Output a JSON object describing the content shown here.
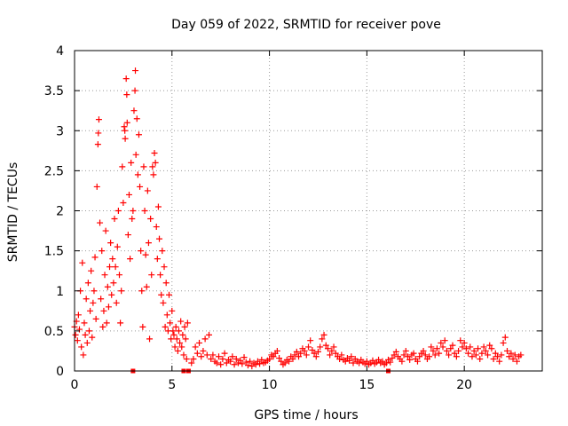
{
  "chart_data": {
    "type": "scatter",
    "title": "Day 059 of 2022, SRMTID for receiver pove",
    "xlabel": "GPS time / hours",
    "ylabel": "SRMTID / TECUs",
    "xlim": [
      0,
      24
    ],
    "ylim": [
      0,
      4
    ],
    "xticks": [
      0,
      5,
      10,
      15,
      20
    ],
    "yticks": [
      0,
      0.5,
      1,
      1.5,
      2,
      2.5,
      3,
      3.5,
      4
    ],
    "xtick_labels": [
      "0",
      "5",
      "10",
      "15",
      "20"
    ],
    "ytick_labels": [
      "0",
      "0.5",
      "1",
      "1.5",
      "2",
      "2.5",
      "3",
      "3.5",
      "4"
    ],
    "grid": true,
    "legend": "none",
    "marker": "+",
    "color": "#ff0000",
    "series": [
      {
        "marker": "+",
        "points": [
          [
            0.0,
            0.55
          ],
          [
            0.05,
            0.45
          ],
          [
            0.1,
            0.62
          ],
          [
            0.15,
            0.38
          ],
          [
            0.2,
            0.7
          ],
          [
            0.25,
            0.52
          ],
          [
            0.3,
            1.0
          ],
          [
            0.35,
            0.3
          ],
          [
            0.4,
            1.35
          ],
          [
            0.45,
            0.2
          ],
          [
            0.5,
            0.6
          ],
          [
            0.55,
            0.45
          ],
          [
            0.6,
            0.9
          ],
          [
            0.65,
            0.35
          ],
          [
            0.7,
            1.1
          ],
          [
            0.75,
            0.5
          ],
          [
            0.8,
            0.75
          ],
          [
            0.85,
            1.25
          ],
          [
            0.9,
            0.42
          ],
          [
            0.95,
            0.85
          ],
          [
            1.0,
            1.0
          ],
          [
            1.05,
            1.42
          ],
          [
            1.1,
            0.65
          ],
          [
            1.15,
            2.3
          ],
          [
            1.2,
            2.83
          ],
          [
            1.22,
            2.97
          ],
          [
            1.25,
            3.14
          ],
          [
            1.3,
            1.85
          ],
          [
            1.35,
            0.9
          ],
          [
            1.4,
            1.5
          ],
          [
            1.45,
            0.55
          ],
          [
            1.5,
            0.75
          ],
          [
            1.55,
            1.2
          ],
          [
            1.6,
            1.75
          ],
          [
            1.65,
            0.6
          ],
          [
            1.7,
            1.05
          ],
          [
            1.75,
            0.8
          ],
          [
            1.8,
            1.3
          ],
          [
            1.85,
            1.6
          ],
          [
            1.9,
            0.95
          ],
          [
            1.95,
            1.4
          ],
          [
            2.0,
            1.1
          ],
          [
            2.05,
            1.9
          ],
          [
            2.1,
            1.3
          ],
          [
            2.15,
            0.85
          ],
          [
            2.2,
            1.55
          ],
          [
            2.25,
            2.0
          ],
          [
            2.3,
            1.2
          ],
          [
            2.35,
            0.6
          ],
          [
            2.4,
            1.0
          ],
          [
            2.45,
            2.55
          ],
          [
            2.5,
            2.1
          ],
          [
            2.55,
            3.05
          ],
          [
            2.58,
            3.0
          ],
          [
            2.6,
            2.9
          ],
          [
            2.65,
            3.65
          ],
          [
            2.68,
            3.45
          ],
          [
            2.7,
            3.1
          ],
          [
            2.75,
            1.7
          ],
          [
            2.8,
            2.2
          ],
          [
            2.85,
            1.4
          ],
          [
            2.9,
            2.6
          ],
          [
            2.95,
            1.9
          ],
          [
            3.0,
            2.0
          ],
          [
            3.05,
            3.25
          ],
          [
            3.1,
            3.5
          ],
          [
            3.12,
            3.75
          ],
          [
            3.15,
            2.7
          ],
          [
            3.2,
            3.15
          ],
          [
            3.25,
            2.45
          ],
          [
            3.3,
            2.95
          ],
          [
            3.35,
            2.3
          ],
          [
            3.4,
            1.5
          ],
          [
            3.45,
            1.0
          ],
          [
            3.5,
            0.55
          ],
          [
            3.55,
            2.55
          ],
          [
            3.6,
            2.0
          ],
          [
            3.65,
            1.45
          ],
          [
            3.7,
            1.05
          ],
          [
            3.75,
            2.25
          ],
          [
            3.8,
            1.6
          ],
          [
            3.85,
            0.4
          ],
          [
            3.9,
            1.9
          ],
          [
            3.95,
            1.2
          ],
          [
            4.0,
            2.55
          ],
          [
            4.05,
            2.45
          ],
          [
            4.1,
            2.72
          ],
          [
            4.15,
            2.6
          ],
          [
            4.2,
            1.8
          ],
          [
            4.25,
            1.4
          ],
          [
            4.3,
            2.05
          ],
          [
            4.35,
            1.65
          ],
          [
            4.4,
            1.2
          ],
          [
            4.45,
            0.95
          ],
          [
            4.5,
            1.5
          ],
          [
            4.55,
            0.85
          ],
          [
            4.6,
            1.3
          ],
          [
            4.65,
            0.55
          ],
          [
            4.7,
            1.1
          ],
          [
            4.75,
            0.7
          ],
          [
            4.8,
            0.5
          ],
          [
            4.85,
            0.95
          ],
          [
            4.9,
            0.6
          ],
          [
            4.95,
            0.4
          ],
          [
            5.0,
            0.75
          ],
          [
            5.05,
            0.5
          ],
          [
            5.1,
            0.45
          ],
          [
            5.15,
            0.3
          ],
          [
            5.2,
            0.55
          ],
          [
            5.25,
            0.4
          ],
          [
            5.3,
            0.25
          ],
          [
            5.35,
            0.5
          ],
          [
            5.4,
            0.35
          ],
          [
            5.45,
            0.62
          ],
          [
            5.5,
            0.3
          ],
          [
            5.55,
            0.45
          ],
          [
            5.6,
            0.2
          ],
          [
            5.65,
            0.55
          ],
          [
            5.7,
            0.4
          ],
          [
            5.75,
            0.15
          ],
          [
            5.8,
            0.6
          ],
          [
            6.0,
            0.1
          ],
          [
            6.1,
            0.15
          ],
          [
            6.2,
            0.3
          ],
          [
            6.3,
            0.22
          ],
          [
            6.4,
            0.35
          ],
          [
            6.5,
            0.18
          ],
          [
            6.6,
            0.25
          ],
          [
            6.7,
            0.4
          ],
          [
            6.8,
            0.2
          ],
          [
            6.9,
            0.45
          ],
          [
            7.0,
            0.15
          ],
          [
            7.1,
            0.2
          ],
          [
            7.2,
            0.12
          ],
          [
            7.3,
            0.1
          ],
          [
            7.4,
            0.18
          ],
          [
            7.5,
            0.08
          ],
          [
            7.6,
            0.15
          ],
          [
            7.7,
            0.22
          ],
          [
            7.8,
            0.1
          ],
          [
            7.9,
            0.14
          ],
          [
            8.0,
            0.12
          ],
          [
            8.1,
            0.18
          ],
          [
            8.2,
            0.08
          ],
          [
            8.3,
            0.15
          ],
          [
            8.4,
            0.1
          ],
          [
            8.5,
            0.13
          ],
          [
            8.6,
            0.09
          ],
          [
            8.7,
            0.17
          ],
          [
            8.8,
            0.11
          ],
          [
            8.9,
            0.07
          ],
          [
            9.0,
            0.12
          ],
          [
            9.1,
            0.06
          ],
          [
            9.2,
            0.1
          ],
          [
            9.3,
            0.08
          ],
          [
            9.4,
            0.12
          ],
          [
            9.5,
            0.09
          ],
          [
            9.6,
            0.14
          ],
          [
            9.7,
            0.1
          ],
          [
            9.8,
            0.11
          ],
          [
            9.9,
            0.13
          ],
          [
            10.0,
            0.15
          ],
          [
            10.1,
            0.2
          ],
          [
            10.2,
            0.18
          ],
          [
            10.3,
            0.22
          ],
          [
            10.4,
            0.25
          ],
          [
            10.5,
            0.16
          ],
          [
            10.6,
            0.12
          ],
          [
            10.7,
            0.08
          ],
          [
            10.8,
            0.1
          ],
          [
            10.9,
            0.14
          ],
          [
            11.0,
            0.12
          ],
          [
            11.1,
            0.18
          ],
          [
            11.2,
            0.15
          ],
          [
            11.3,
            0.2
          ],
          [
            11.4,
            0.24
          ],
          [
            11.5,
            0.18
          ],
          [
            11.6,
            0.22
          ],
          [
            11.7,
            0.28
          ],
          [
            11.8,
            0.25
          ],
          [
            11.9,
            0.2
          ],
          [
            12.0,
            0.3
          ],
          [
            12.1,
            0.38
          ],
          [
            12.2,
            0.26
          ],
          [
            12.3,
            0.22
          ],
          [
            12.4,
            0.18
          ],
          [
            12.5,
            0.24
          ],
          [
            12.6,
            0.3
          ],
          [
            12.7,
            0.4
          ],
          [
            12.8,
            0.45
          ],
          [
            12.9,
            0.32
          ],
          [
            13.0,
            0.28
          ],
          [
            13.1,
            0.2
          ],
          [
            13.2,
            0.25
          ],
          [
            13.3,
            0.3
          ],
          [
            13.4,
            0.22
          ],
          [
            13.5,
            0.18
          ],
          [
            13.6,
            0.15
          ],
          [
            13.7,
            0.2
          ],
          [
            13.8,
            0.14
          ],
          [
            13.9,
            0.12
          ],
          [
            14.0,
            0.16
          ],
          [
            14.1,
            0.13
          ],
          [
            14.2,
            0.18
          ],
          [
            14.3,
            0.1
          ],
          [
            14.4,
            0.15
          ],
          [
            14.5,
            0.12
          ],
          [
            14.6,
            0.1
          ],
          [
            14.7,
            0.14
          ],
          [
            14.8,
            0.11
          ],
          [
            14.9,
            0.09
          ],
          [
            15.0,
            0.12
          ],
          [
            15.1,
            0.08
          ],
          [
            15.2,
            0.1
          ],
          [
            15.3,
            0.13
          ],
          [
            15.4,
            0.09
          ],
          [
            15.5,
            0.11
          ],
          [
            15.6,
            0.14
          ],
          [
            15.7,
            0.1
          ],
          [
            15.8,
            0.12
          ],
          [
            15.9,
            0.08
          ],
          [
            16.0,
            0.1
          ],
          [
            16.1,
            0.14
          ],
          [
            16.2,
            0.11
          ],
          [
            16.3,
            0.16
          ],
          [
            16.4,
            0.2
          ],
          [
            16.5,
            0.24
          ],
          [
            16.6,
            0.18
          ],
          [
            16.7,
            0.15
          ],
          [
            16.8,
            0.12
          ],
          [
            16.9,
            0.2
          ],
          [
            17.0,
            0.25
          ],
          [
            17.1,
            0.18
          ],
          [
            17.2,
            0.14
          ],
          [
            17.3,
            0.2
          ],
          [
            17.4,
            0.22
          ],
          [
            17.5,
            0.15
          ],
          [
            17.6,
            0.12
          ],
          [
            17.7,
            0.18
          ],
          [
            17.8,
            0.22
          ],
          [
            17.9,
            0.25
          ],
          [
            18.0,
            0.2
          ],
          [
            18.1,
            0.15
          ],
          [
            18.2,
            0.18
          ],
          [
            18.3,
            0.3
          ],
          [
            18.4,
            0.25
          ],
          [
            18.5,
            0.2
          ],
          [
            18.6,
            0.28
          ],
          [
            18.7,
            0.22
          ],
          [
            18.8,
            0.35
          ],
          [
            18.9,
            0.3
          ],
          [
            19.0,
            0.38
          ],
          [
            19.1,
            0.25
          ],
          [
            19.2,
            0.2
          ],
          [
            19.3,
            0.28
          ],
          [
            19.4,
            0.32
          ],
          [
            19.5,
            0.22
          ],
          [
            19.6,
            0.18
          ],
          [
            19.7,
            0.25
          ],
          [
            19.8,
            0.38
          ],
          [
            19.9,
            0.3
          ],
          [
            20.0,
            0.35
          ],
          [
            20.1,
            0.28
          ],
          [
            20.2,
            0.22
          ],
          [
            20.3,
            0.3
          ],
          [
            20.4,
            0.18
          ],
          [
            20.5,
            0.25
          ],
          [
            20.6,
            0.2
          ],
          [
            20.7,
            0.28
          ],
          [
            20.8,
            0.15
          ],
          [
            20.9,
            0.22
          ],
          [
            21.0,
            0.3
          ],
          [
            21.1,
            0.25
          ],
          [
            21.2,
            0.2
          ],
          [
            21.3,
            0.32
          ],
          [
            21.4,
            0.28
          ],
          [
            21.5,
            0.15
          ],
          [
            21.6,
            0.22
          ],
          [
            21.7,
            0.18
          ],
          [
            21.8,
            0.12
          ],
          [
            21.9,
            0.2
          ],
          [
            22.0,
            0.35
          ],
          [
            22.1,
            0.42
          ],
          [
            22.2,
            0.25
          ],
          [
            22.3,
            0.18
          ],
          [
            22.4,
            0.22
          ],
          [
            22.5,
            0.15
          ],
          [
            22.6,
            0.2
          ],
          [
            22.7,
            0.12
          ],
          [
            22.8,
            0.18
          ],
          [
            22.9,
            0.2
          ]
        ]
      },
      {
        "marker": "square",
        "points": [
          [
            3.0,
            0.0
          ],
          [
            5.6,
            0.0
          ],
          [
            5.85,
            0.0
          ],
          [
            16.1,
            0.0
          ]
        ]
      }
    ]
  }
}
